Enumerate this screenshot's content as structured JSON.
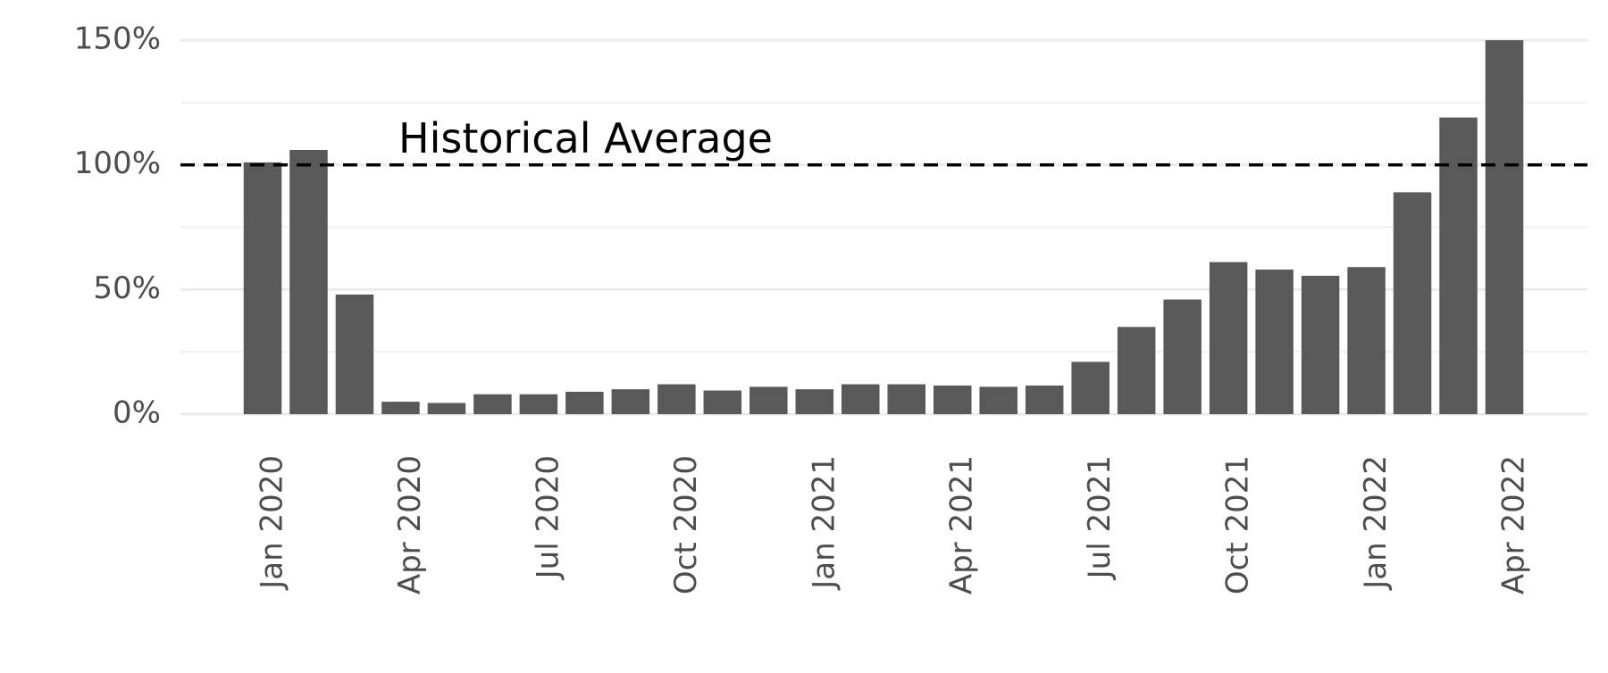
{
  "chart_data": {
    "type": "bar",
    "categories": [
      "Jan 2020",
      null,
      null,
      "Apr 2020",
      null,
      null,
      "Jul 2020",
      null,
      null,
      "Oct 2020",
      null,
      null,
      "Jan 2021",
      null,
      null,
      "Apr 2021",
      null,
      null,
      "Jul 2021",
      null,
      null,
      "Oct 2021",
      null,
      null,
      "Jan 2022",
      null,
      null,
      "Apr 2022"
    ],
    "values": [
      101,
      106,
      48,
      5,
      4.5,
      8,
      8,
      9,
      10,
      12,
      9.5,
      11,
      10,
      12,
      12,
      11.5,
      11,
      11.5,
      21,
      35,
      46,
      61,
      58,
      55.5,
      59,
      89,
      119,
      150
    ],
    "color": "#595959",
    "ylim": [
      -7,
      158
    ],
    "yticks": [
      {
        "value": 0,
        "label": "0%"
      },
      {
        "value": 50,
        "label": "50%"
      },
      {
        "value": 100,
        "label": "100%"
      },
      {
        "value": 150,
        "label": "150%"
      }
    ],
    "minor_grid": [
      25,
      75,
      125
    ],
    "grid": true,
    "reference_line": {
      "value": 100,
      "label": "Historical Average",
      "color": "#000000",
      "dashed": true
    }
  }
}
